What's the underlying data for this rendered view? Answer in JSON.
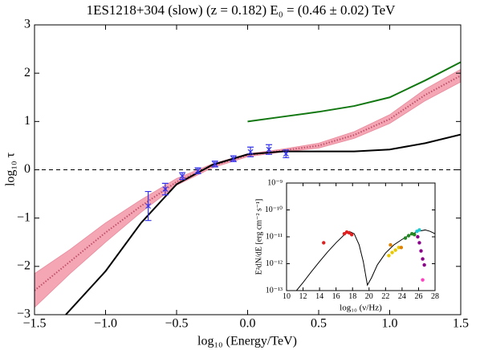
{
  "chart_data": [
    {
      "type": "line",
      "title": "1ES1218+304 (slow) (z = 0.182) E₀ = (0.46 ± 0.02) TeV",
      "xlabel": "log₁₀ (Energy/TeV)",
      "ylabel": "log₁₀ τ",
      "xlim": [
        -1.5,
        1.5
      ],
      "ylim": [
        -3,
        3
      ],
      "xticks": [
        {
          "value": -1.5,
          "label": "−1.5"
        },
        {
          "value": -1.0,
          "label": "−1.0"
        },
        {
          "value": -0.5,
          "label": "−0.5"
        },
        {
          "value": 0.0,
          "label": "0.0"
        },
        {
          "value": 0.5,
          "label": "0.5"
        },
        {
          "value": 1.0,
          "label": "1.0"
        },
        {
          "value": 1.5,
          "label": "1.5"
        }
      ],
      "yticks": [
        {
          "value": -3,
          "label": "−3"
        },
        {
          "value": -2,
          "label": "−2"
        },
        {
          "value": -1,
          "label": "−1"
        },
        0,
        1,
        2,
        3
      ],
      "reference_lines": [
        0
      ],
      "bands": [
        {
          "color": "#f4a6b4",
          "x": [
            -1.5,
            -1.25,
            -1.0,
            -0.75,
            -0.5,
            -0.25,
            0,
            0.25,
            0.5,
            0.75,
            1.0,
            1.25,
            1.5
          ],
          "lower": [
            -2.85,
            -2.15,
            -1.5,
            -0.88,
            -0.32,
            0.04,
            0.27,
            0.37,
            0.45,
            0.65,
            0.96,
            1.43,
            1.82
          ],
          "upper": [
            -2.15,
            -1.65,
            -1.1,
            -0.62,
            -0.18,
            0.12,
            0.33,
            0.43,
            0.55,
            0.79,
            1.14,
            1.67,
            2.08
          ]
        }
      ],
      "series": [
        {
          "color": "#c0506a",
          "style": "dotted",
          "x": [
            -1.5,
            -1.25,
            -1.0,
            -0.75,
            -0.5,
            -0.25,
            0,
            0.25,
            0.5,
            0.75,
            1.0,
            1.25,
            1.5
          ],
          "values": [
            -2.5,
            -1.9,
            -1.3,
            -0.75,
            -0.25,
            0.08,
            0.3,
            0.4,
            0.5,
            0.72,
            1.05,
            1.55,
            1.95
          ]
        },
        {
          "color": "#000000",
          "style": "solid",
          "x": [
            -1.28,
            -1.0,
            -0.75,
            -0.5,
            -0.25,
            0,
            0.25,
            0.5,
            0.75,
            1.0,
            1.25,
            1.5
          ],
          "values": [
            -3.0,
            -2.1,
            -1.1,
            -0.3,
            0.1,
            0.32,
            0.38,
            0.38,
            0.38,
            0.42,
            0.55,
            0.73
          ]
        },
        {
          "color": "#117711",
          "style": "solid",
          "x": [
            0,
            0.25,
            0.5,
            0.75,
            1.0,
            1.25,
            1.5
          ],
          "values": [
            1.0,
            1.1,
            1.2,
            1.32,
            1.5,
            1.85,
            2.23
          ]
        }
      ],
      "points": [
        {
          "color": "#3333ee",
          "x": [
            -0.7,
            -0.58,
            -0.46,
            -0.35,
            -0.23,
            -0.1,
            0.02,
            0.15,
            0.27
          ],
          "values": [
            -0.75,
            -0.4,
            -0.13,
            -0.02,
            0.12,
            0.23,
            0.37,
            0.42,
            0.33
          ],
          "errors": [
            0.3,
            0.12,
            0.07,
            0.06,
            0.06,
            0.06,
            0.1,
            0.1,
            0.08
          ]
        }
      ]
    },
    {
      "type": "line",
      "xlabel": "log₁₀ (ν/Hz)",
      "ylabel": "E²dN/dE [erg cm⁻² s⁻¹]",
      "xlim": [
        10,
        28
      ],
      "ylim": [
        1e-13,
        1e-09
      ],
      "ylog": true,
      "xticks": [
        10,
        12,
        14,
        16,
        18,
        20,
        22,
        24,
        26,
        28
      ],
      "yticks": [
        {
          "value": 1e-13,
          "label": "10⁻¹³"
        },
        {
          "value": 1e-12,
          "label": "10⁻¹²"
        },
        {
          "value": 1e-11,
          "label": "10⁻¹¹"
        },
        {
          "value": 1e-10,
          "label": "10⁻¹⁰"
        },
        {
          "value": 1e-09,
          "label": "10⁻⁹"
        }
      ],
      "series": [
        {
          "color": "#000000",
          "style": "solid",
          "x": [
            11.2,
            12,
            13,
            14,
            15,
            16,
            17,
            17.6,
            18.2,
            18.8,
            19.3,
            19.8,
            20.3,
            21,
            22,
            23,
            24,
            25,
            26,
            26.8,
            27.4,
            28
          ],
          "values": [
            1e-13,
            2e-13,
            5e-13,
            1.2e-12,
            2.8e-12,
            6e-12,
            1.2e-11,
            1.6e-11,
            1.3e-11,
            5e-12,
            1.2e-12,
            1.6e-13,
            3e-13,
            9e-13,
            2.5e-12,
            5e-12,
            8e-12,
            1.2e-11,
            1.6e-11,
            1.8e-11,
            1.6e-11,
            1.3e-11
          ]
        }
      ],
      "points": [
        {
          "color": "#e02020",
          "x": [
            14.5,
            17.0,
            17.3,
            17.6,
            17.9
          ],
          "values": [
            6e-12,
            1.3e-11,
            1.5e-11,
            1.4e-11,
            1.2e-11
          ]
        },
        {
          "color": "#e8c800",
          "x": [
            22.4,
            22.8,
            23.2,
            23.6
          ],
          "values": [
            2e-12,
            2.6e-12,
            3.2e-12,
            4e-12
          ]
        },
        {
          "color": "#e08000",
          "x": [
            22.6,
            23.9
          ],
          "values": [
            5e-12,
            4e-12
          ]
        },
        {
          "color": "#228822",
          "x": [
            24.4,
            24.8,
            25.2,
            25.5
          ],
          "values": [
            9e-12,
            1.1e-11,
            1.3e-11,
            1.2e-11
          ]
        },
        {
          "color": "#20c8d0",
          "x": [
            25.8,
            26.1
          ],
          "values": [
            1.6e-11,
            1.8e-11
          ]
        },
        {
          "color": "#8b008b",
          "x": [
            25.9,
            26.1,
            26.3,
            26.5,
            26.7
          ],
          "values": [
            1e-11,
            6e-12,
            3e-12,
            1.5e-12,
            9e-13
          ]
        },
        {
          "color": "#ff40c0",
          "x": [
            26.5
          ],
          "values": [
            2.5e-13
          ]
        }
      ]
    }
  ]
}
